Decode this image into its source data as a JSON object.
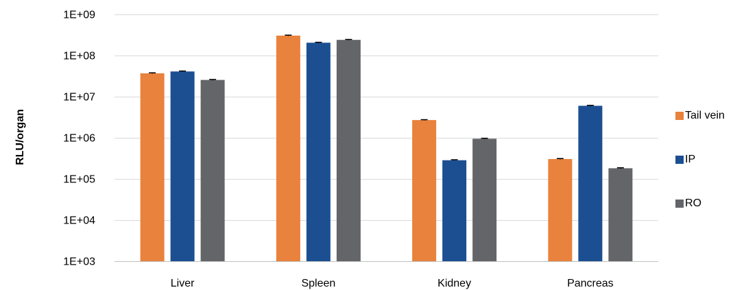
{
  "chart_data": {
    "type": "bar",
    "categories": [
      "Liver",
      "Spleen",
      "Kidney",
      "Pancreas"
    ],
    "series": [
      {
        "name": "Tail vein",
        "color": "#E8823D",
        "values": [
          37000000,
          305000000,
          2700000,
          305000
        ],
        "errors": [
          1000000,
          8000000,
          60000,
          8000
        ]
      },
      {
        "name": "IP",
        "color": "#1C4F92",
        "values": [
          41000000,
          205000000,
          285000,
          6000000
        ],
        "errors": [
          1000000,
          5000000,
          8000,
          150000
        ]
      },
      {
        "name": "RO",
        "color": "#646569",
        "values": [
          25500000,
          240000000,
          950000,
          182000
        ],
        "errors": [
          700000,
          6000000,
          25000,
          5000
        ]
      }
    ],
    "title": "",
    "xlabel": "",
    "ylabel": "RLU/organ",
    "yscale": "log",
    "ylim": [
      1000,
      1000000000
    ],
    "yticks": [
      "1E+03",
      "1E+04",
      "1E+05",
      "1E+06",
      "1E+07",
      "1E+08",
      "1E+09"
    ],
    "grid": true,
    "legend_position": "right"
  }
}
